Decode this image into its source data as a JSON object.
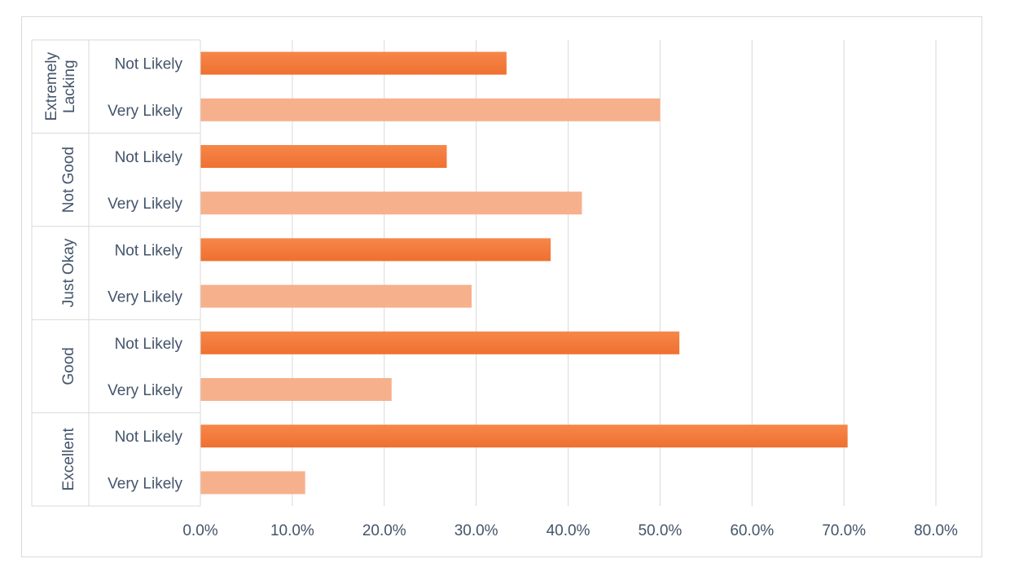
{
  "chart_data": {
    "type": "bar",
    "orientation": "horizontal",
    "title": "",
    "xlabel": "",
    "ylabel": "",
    "xlim": [
      0,
      80
    ],
    "x_ticks": [
      "0.0%",
      "10.0%",
      "20.0%",
      "30.0%",
      "40.0%",
      "50.0%",
      "60.0%",
      "70.0%",
      "80.0%"
    ],
    "grid": "vertical",
    "legend": "none",
    "colors": {
      "Not Likely": "#f47c3c",
      "Very Likely": "#f7b08c"
    },
    "groups": [
      {
        "name": "Extremely Lacking",
        "bars": [
          {
            "label": "Not Likely",
            "value": 33.3
          },
          {
            "label": "Very Likely",
            "value": 50.0
          }
        ]
      },
      {
        "name": "Not Good",
        "bars": [
          {
            "label": "Not Likely",
            "value": 26.8
          },
          {
            "label": "Very Likely",
            "value": 41.5
          }
        ]
      },
      {
        "name": "Just Okay",
        "bars": [
          {
            "label": "Not Likely",
            "value": 38.1
          },
          {
            "label": "Very Likely",
            "value": 29.5
          }
        ]
      },
      {
        "name": "Good",
        "bars": [
          {
            "label": "Not Likely",
            "value": 52.1
          },
          {
            "label": "Very Likely",
            "value": 20.8
          }
        ]
      },
      {
        "name": "Excellent",
        "bars": [
          {
            "label": "Not Likely",
            "value": 70.4
          },
          {
            "label": "Very Likely",
            "value": 11.4
          }
        ]
      }
    ]
  }
}
